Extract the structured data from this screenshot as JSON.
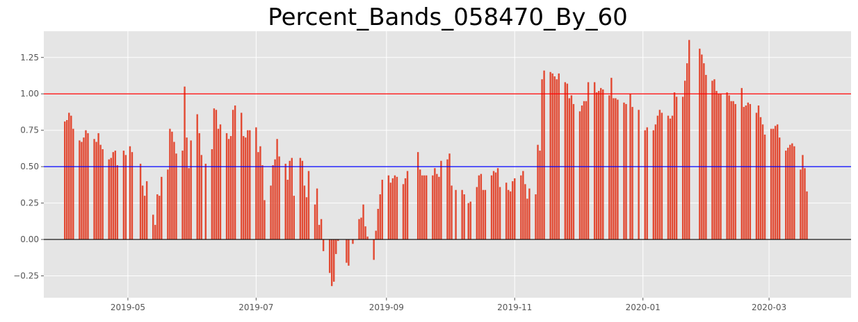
{
  "chart_data": {
    "type": "bar",
    "title": "Percent_Bands_058470_By_60",
    "xlabel": "",
    "ylabel": "",
    "x_range": [
      "2019-03-22",
      "2020-04-09"
    ],
    "ylim": [
      -0.4,
      1.43
    ],
    "grid": true,
    "legend": "none",
    "x_ticks": [
      "2019-05-01",
      "2019-07-01",
      "2019-09-01",
      "2019-11-01",
      "2020-01-01",
      "2020-03-01"
    ],
    "x_tick_labels": [
      "2019-05",
      "2019-07",
      "2019-09",
      "2019-11",
      "2020-01",
      "2020-03"
    ],
    "y_ticks": [
      -0.25,
      0.0,
      0.25,
      0.5,
      0.75,
      1.0,
      1.25
    ],
    "y_tick_labels": [
      "−0.25",
      "0.00",
      "0.25",
      "0.50",
      "0.75",
      "1.00",
      "1.25"
    ],
    "bar_color": "#e24a33",
    "bar_width_days": 0.8,
    "reference_lines": [
      {
        "y": 1.0,
        "color": "#ff0000"
      },
      {
        "y": 0.5,
        "color": "#0000ff"
      },
      {
        "y": 0.0,
        "color": "#000000"
      }
    ],
    "series": [
      {
        "x": [
          "2019-04-01",
          "2019-04-02",
          "2019-04-03",
          "2019-04-04",
          "2019-04-05",
          "2019-04-08",
          "2019-04-09",
          "2019-04-10",
          "2019-04-11",
          "2019-04-12",
          "2019-04-15",
          "2019-04-16",
          "2019-04-17",
          "2019-04-18",
          "2019-04-19",
          "2019-04-22",
          "2019-04-23",
          "2019-04-24",
          "2019-04-25",
          "2019-04-26",
          "2019-04-29",
          "2019-04-30",
          "2019-05-02",
          "2019-05-03",
          "2019-05-07",
          "2019-05-08",
          "2019-05-09",
          "2019-05-10",
          "2019-05-13",
          "2019-05-14",
          "2019-05-15",
          "2019-05-16",
          "2019-05-17",
          "2019-05-20",
          "2019-05-21",
          "2019-05-22",
          "2019-05-23",
          "2019-05-24",
          "2019-05-27",
          "2019-05-28",
          "2019-05-29",
          "2019-05-30",
          "2019-05-31",
          "2019-06-03",
          "2019-06-04",
          "2019-06-05",
          "2019-06-07",
          "2019-06-10",
          "2019-06-11",
          "2019-06-12",
          "2019-06-13",
          "2019-06-14",
          "2019-06-17",
          "2019-06-18",
          "2019-06-19",
          "2019-06-20",
          "2019-06-21",
          "2019-06-24",
          "2019-06-25",
          "2019-06-26",
          "2019-06-27",
          "2019-06-28",
          "2019-07-01",
          "2019-07-02",
          "2019-07-03",
          "2019-07-04",
          "2019-07-05",
          "2019-07-08",
          "2019-07-09",
          "2019-07-10",
          "2019-07-11",
          "2019-07-12",
          "2019-07-15",
          "2019-07-16",
          "2019-07-17",
          "2019-07-18",
          "2019-07-19",
          "2019-07-22",
          "2019-07-23",
          "2019-07-24",
          "2019-07-25",
          "2019-07-26",
          "2019-07-29",
          "2019-07-30",
          "2019-07-31",
          "2019-08-01",
          "2019-08-02",
          "2019-08-05",
          "2019-08-06",
          "2019-08-07",
          "2019-08-08",
          "2019-08-09",
          "2019-08-13",
          "2019-08-14",
          "2019-08-16",
          "2019-08-19",
          "2019-08-20",
          "2019-08-21",
          "2019-08-22",
          "2019-08-23",
          "2019-08-26",
          "2019-08-27",
          "2019-08-28",
          "2019-08-29",
          "2019-08-30",
          "2019-09-02",
          "2019-09-03",
          "2019-09-04",
          "2019-09-05",
          "2019-09-06",
          "2019-09-09",
          "2019-09-10",
          "2019-09-11",
          "2019-09-16",
          "2019-09-17",
          "2019-09-18",
          "2019-09-19",
          "2019-09-20",
          "2019-09-23",
          "2019-09-24",
          "2019-09-25",
          "2019-09-26",
          "2019-09-27",
          "2019-09-30",
          "2019-10-01",
          "2019-10-02",
          "2019-10-04",
          "2019-10-07",
          "2019-10-08",
          "2019-10-10",
          "2019-10-11",
          "2019-10-14",
          "2019-10-15",
          "2019-10-16",
          "2019-10-17",
          "2019-10-18",
          "2019-10-21",
          "2019-10-22",
          "2019-10-23",
          "2019-10-24",
          "2019-10-25",
          "2019-10-28",
          "2019-10-29",
          "2019-10-30",
          "2019-10-31",
          "2019-11-01",
          "2019-11-04",
          "2019-11-05",
          "2019-11-06",
          "2019-11-07",
          "2019-11-08",
          "2019-11-11",
          "2019-11-12",
          "2019-11-13",
          "2019-11-14",
          "2019-11-15",
          "2019-11-18",
          "2019-11-19",
          "2019-11-20",
          "2019-11-21",
          "2019-11-22",
          "2019-11-25",
          "2019-11-26",
          "2019-11-27",
          "2019-11-28",
          "2019-11-29",
          "2019-12-02",
          "2019-12-03",
          "2019-12-04",
          "2019-12-05",
          "2019-12-06",
          "2019-12-09",
          "2019-12-10",
          "2019-12-11",
          "2019-12-12",
          "2019-12-13",
          "2019-12-16",
          "2019-12-17",
          "2019-12-18",
          "2019-12-19",
          "2019-12-20",
          "2019-12-23",
          "2019-12-24",
          "2019-12-26",
          "2019-12-27",
          "2019-12-30",
          "2020-01-02",
          "2020-01-03",
          "2020-01-06",
          "2020-01-07",
          "2020-01-08",
          "2020-01-09",
          "2020-01-10",
          "2020-01-13",
          "2020-01-14",
          "2020-01-15",
          "2020-01-16",
          "2020-01-17",
          "2020-01-20",
          "2020-01-21",
          "2020-01-22",
          "2020-01-23",
          "2020-01-28",
          "2020-01-29",
          "2020-01-30",
          "2020-01-31",
          "2020-02-03",
          "2020-02-04",
          "2020-02-05",
          "2020-02-06",
          "2020-02-07",
          "2020-02-10",
          "2020-02-11",
          "2020-02-12",
          "2020-02-13",
          "2020-02-14",
          "2020-02-17",
          "2020-02-18",
          "2020-02-19",
          "2020-02-20",
          "2020-02-21",
          "2020-02-24",
          "2020-02-25",
          "2020-02-26",
          "2020-02-27",
          "2020-02-28",
          "2020-03-02",
          "2020-03-03",
          "2020-03-04",
          "2020-03-05",
          "2020-03-06",
          "2020-03-09",
          "2020-03-10",
          "2020-03-11",
          "2020-03-12",
          "2020-03-13",
          "2020-03-16",
          "2020-03-17",
          "2020-03-18",
          "2020-03-19"
        ],
        "values": [
          0.81,
          0.82,
          0.87,
          0.85,
          0.76,
          0.68,
          0.67,
          0.7,
          0.75,
          0.73,
          0.69,
          0.67,
          0.73,
          0.65,
          0.62,
          0.55,
          0.56,
          0.6,
          0.61,
          0.51,
          0.61,
          0.58,
          0.64,
          0.6,
          0.52,
          0.37,
          0.3,
          0.4,
          0.17,
          0.1,
          0.31,
          0.3,
          0.43,
          0.48,
          0.76,
          0.74,
          0.67,
          0.59,
          0.61,
          1.05,
          0.7,
          0.49,
          0.68,
          0.86,
          0.73,
          0.58,
          0.52,
          0.62,
          0.9,
          0.89,
          0.76,
          0.79,
          0.73,
          0.69,
          0.71,
          0.89,
          0.92,
          0.87,
          0.71,
          0.7,
          0.75,
          0.75,
          0.77,
          0.6,
          0.64,
          0.51,
          0.27,
          0.37,
          0.51,
          0.55,
          0.69,
          0.57,
          0.52,
          0.41,
          0.54,
          0.56,
          0.3,
          0.56,
          0.54,
          0.37,
          0.29,
          0.47,
          0.24,
          0.35,
          0.1,
          0.14,
          -0.08,
          -0.23,
          -0.32,
          -0.29,
          -0.1,
          -0.01,
          -0.16,
          -0.18,
          -0.03,
          0.14,
          0.15,
          0.24,
          0.09,
          0.02,
          -0.14,
          0.06,
          0.21,
          0.31,
          0.41,
          0.44,
          0.39,
          0.42,
          0.44,
          0.43,
          0.38,
          0.42,
          0.47,
          0.6,
          0.48,
          0.44,
          0.44,
          0.44,
          0.44,
          0.49,
          0.45,
          0.43,
          0.54,
          0.55,
          0.59,
          0.37,
          0.34,
          0.34,
          0.31,
          0.25,
          0.26,
          0.36,
          0.44,
          0.45,
          0.34,
          0.34,
          0.44,
          0.47,
          0.46,
          0.49,
          0.36,
          0.39,
          0.34,
          0.33,
          0.4,
          0.42,
          0.44,
          0.47,
          0.38,
          0.28,
          0.35,
          0.31,
          0.65,
          0.61,
          1.1,
          1.16,
          1.15,
          1.14,
          1.12,
          1.1,
          1.14,
          1.08,
          1.07,
          0.97,
          0.99,
          0.93,
          0.88,
          0.92,
          0.95,
          0.95,
          1.08,
          1.08,
          1.01,
          1.02,
          1.04,
          1.03,
          0.99,
          1.11,
          0.97,
          0.97,
          0.96,
          0.94,
          0.93,
          1.0,
          0.91,
          0.89,
          0.75,
          0.77,
          0.75,
          0.79,
          0.85,
          0.89,
          0.87,
          0.85,
          0.83,
          0.85,
          1.01,
          0.98,
          0.98,
          1.09,
          1.21,
          1.37,
          1.31,
          1.27,
          1.21,
          1.13,
          1.09,
          1.1,
          1.02,
          1.0,
          1.0,
          1.01,
          0.99,
          0.95,
          0.95,
          0.93,
          1.04,
          0.91,
          0.92,
          0.94,
          0.93,
          0.87,
          0.92,
          0.84,
          0.79,
          0.72,
          0.76,
          0.76,
          0.78,
          0.79,
          0.7,
          0.61,
          0.63,
          0.65,
          0.66,
          0.64,
          0.48,
          0.58,
          0.49,
          0.33
        ]
      }
    ]
  }
}
